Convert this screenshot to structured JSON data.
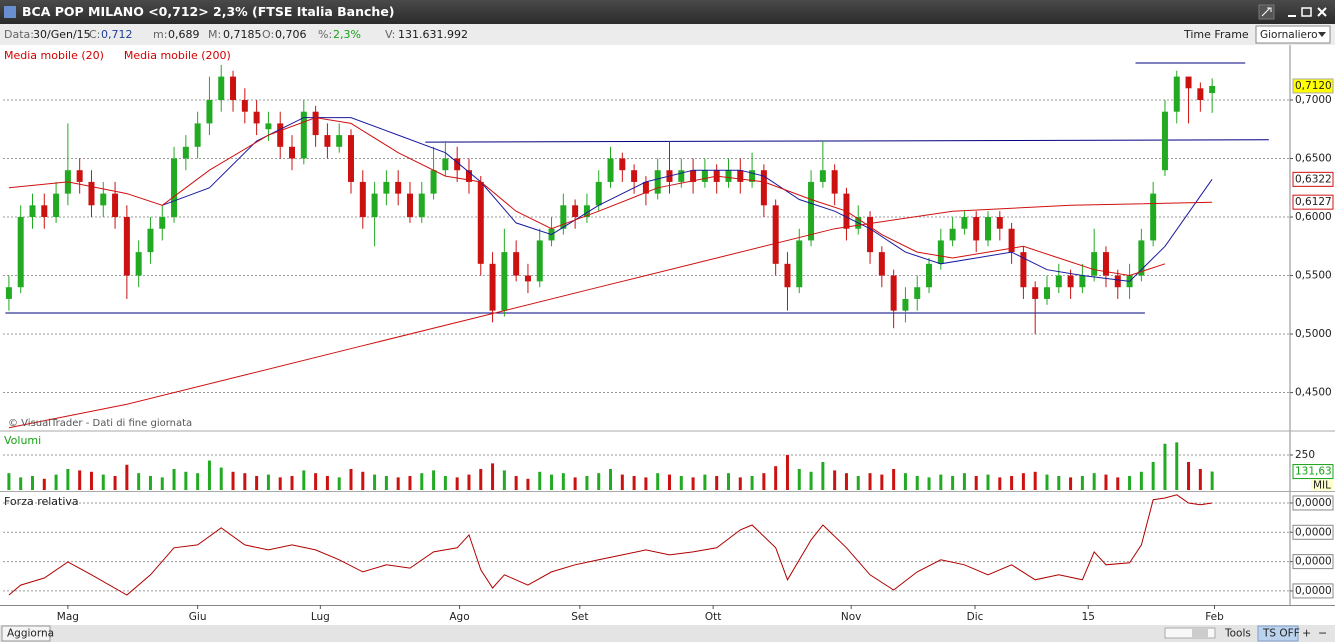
{
  "window": {
    "title": "BCA POP MILANO <0,712> 2,3%  (FTSE Italia Banche)",
    "info": [
      {
        "label": "Data:",
        "value": "30/Gen/15"
      },
      {
        "label": "C:",
        "value": "0,712"
      },
      {
        "label": "m:",
        "value": "0,689"
      },
      {
        "label": "M:",
        "value": "0,7185"
      },
      {
        "label": "O:",
        "value": "0,706"
      },
      {
        "label": "%:",
        "value": "2,3%"
      },
      {
        "label": "V:",
        "value": "131.631.992"
      }
    ],
    "time_frame_label": "Time Frame",
    "time_frame": "Giornaliero",
    "bottom": {
      "refresh": "Aggiorna",
      "tools": "Tools",
      "ts": "TS OFF"
    }
  },
  "chart_data": [
    {
      "type": "candlestick",
      "source": "© VisualTrader - Dati di fine giornata",
      "up_color": "#22aa22",
      "down_color": "#cc1111",
      "xlim": [
        -0.5,
        108.6
      ],
      "ylim": [
        0.418,
        0.747
      ],
      "yticks": [
        {
          "value": 0.45,
          "label": "0,4500"
        },
        {
          "value": 0.5,
          "label": "0,5000"
        },
        {
          "value": 0.55,
          "label": "0,5500"
        },
        {
          "value": 0.6,
          "label": "0,6000"
        },
        {
          "value": 0.65,
          "label": "0,6500"
        },
        {
          "value": 0.7,
          "label": "0,7000"
        }
      ],
      "grid": true,
      "ohlc": [
        [
          0.53,
          0.55,
          0.52,
          0.54
        ],
        [
          0.54,
          0.61,
          0.535,
          0.6
        ],
        [
          0.6,
          0.62,
          0.59,
          0.61
        ],
        [
          0.61,
          0.62,
          0.59,
          0.6
        ],
        [
          0.6,
          0.63,
          0.595,
          0.62
        ],
        [
          0.62,
          0.68,
          0.61,
          0.64
        ],
        [
          0.64,
          0.65,
          0.62,
          0.63
        ],
        [
          0.63,
          0.64,
          0.6,
          0.61
        ],
        [
          0.61,
          0.63,
          0.6,
          0.62
        ],
        [
          0.62,
          0.63,
          0.59,
          0.6
        ],
        [
          0.6,
          0.61,
          0.53,
          0.55
        ],
        [
          0.55,
          0.58,
          0.54,
          0.57
        ],
        [
          0.57,
          0.6,
          0.56,
          0.59
        ],
        [
          0.59,
          0.61,
          0.58,
          0.6
        ],
        [
          0.6,
          0.66,
          0.595,
          0.65
        ],
        [
          0.65,
          0.67,
          0.64,
          0.66
        ],
        [
          0.66,
          0.69,
          0.65,
          0.68
        ],
        [
          0.68,
          0.72,
          0.67,
          0.7
        ],
        [
          0.7,
          0.73,
          0.69,
          0.72
        ],
        [
          0.72,
          0.725,
          0.69,
          0.7
        ],
        [
          0.7,
          0.71,
          0.68,
          0.69
        ],
        [
          0.69,
          0.7,
          0.67,
          0.68
        ],
        [
          0.675,
          0.69,
          0.665,
          0.68
        ],
        [
          0.68,
          0.69,
          0.65,
          0.66
        ],
        [
          0.66,
          0.67,
          0.64,
          0.65
        ],
        [
          0.65,
          0.7,
          0.645,
          0.69
        ],
        [
          0.69,
          0.695,
          0.66,
          0.67
        ],
        [
          0.67,
          0.68,
          0.65,
          0.66
        ],
        [
          0.66,
          0.68,
          0.655,
          0.67
        ],
        [
          0.67,
          0.675,
          0.62,
          0.63
        ],
        [
          0.63,
          0.64,
          0.59,
          0.6
        ],
        [
          0.6,
          0.63,
          0.575,
          0.62
        ],
        [
          0.62,
          0.64,
          0.61,
          0.63
        ],
        [
          0.63,
          0.64,
          0.61,
          0.62
        ],
        [
          0.62,
          0.63,
          0.595,
          0.6
        ],
        [
          0.6,
          0.63,
          0.595,
          0.62
        ],
        [
          0.62,
          0.66,
          0.615,
          0.64
        ],
        [
          0.64,
          0.665,
          0.635,
          0.65
        ],
        [
          0.65,
          0.66,
          0.63,
          0.64
        ],
        [
          0.64,
          0.65,
          0.62,
          0.63
        ],
        [
          0.63,
          0.635,
          0.55,
          0.56
        ],
        [
          0.56,
          0.57,
          0.51,
          0.52
        ],
        [
          0.52,
          0.59,
          0.515,
          0.57
        ],
        [
          0.57,
          0.58,
          0.545,
          0.55
        ],
        [
          0.55,
          0.56,
          0.535,
          0.545
        ],
        [
          0.545,
          0.59,
          0.54,
          0.58
        ],
        [
          0.58,
          0.6,
          0.575,
          0.59
        ],
        [
          0.59,
          0.62,
          0.585,
          0.61
        ],
        [
          0.61,
          0.615,
          0.59,
          0.6
        ],
        [
          0.6,
          0.62,
          0.595,
          0.61
        ],
        [
          0.61,
          0.64,
          0.605,
          0.63
        ],
        [
          0.63,
          0.66,
          0.625,
          0.65
        ],
        [
          0.65,
          0.655,
          0.63,
          0.64
        ],
        [
          0.64,
          0.645,
          0.62,
          0.63
        ],
        [
          0.63,
          0.635,
          0.61,
          0.62
        ],
        [
          0.62,
          0.65,
          0.615,
          0.64
        ],
        [
          0.64,
          0.665,
          0.62,
          0.63
        ],
        [
          0.63,
          0.65,
          0.625,
          0.64
        ],
        [
          0.64,
          0.65,
          0.62,
          0.63
        ],
        [
          0.63,
          0.65,
          0.625,
          0.64
        ],
        [
          0.64,
          0.645,
          0.62,
          0.63
        ],
        [
          0.63,
          0.65,
          0.625,
          0.64
        ],
        [
          0.64,
          0.65,
          0.62,
          0.63
        ],
        [
          0.63,
          0.655,
          0.625,
          0.64
        ],
        [
          0.64,
          0.645,
          0.6,
          0.61
        ],
        [
          0.61,
          0.615,
          0.55,
          0.56
        ],
        [
          0.56,
          0.57,
          0.52,
          0.54
        ],
        [
          0.54,
          0.59,
          0.535,
          0.58
        ],
        [
          0.58,
          0.64,
          0.575,
          0.63
        ],
        [
          0.63,
          0.665,
          0.625,
          0.64
        ],
        [
          0.64,
          0.645,
          0.61,
          0.62
        ],
        [
          0.62,
          0.625,
          0.58,
          0.59
        ],
        [
          0.59,
          0.61,
          0.585,
          0.6
        ],
        [
          0.6,
          0.605,
          0.56,
          0.57
        ],
        [
          0.57,
          0.575,
          0.54,
          0.55
        ],
        [
          0.55,
          0.555,
          0.505,
          0.52
        ],
        [
          0.52,
          0.54,
          0.51,
          0.53
        ],
        [
          0.53,
          0.55,
          0.52,
          0.54
        ],
        [
          0.54,
          0.565,
          0.535,
          0.56
        ],
        [
          0.56,
          0.59,
          0.555,
          0.58
        ],
        [
          0.58,
          0.6,
          0.575,
          0.59
        ],
        [
          0.59,
          0.605,
          0.585,
          0.6
        ],
        [
          0.6,
          0.605,
          0.57,
          0.58
        ],
        [
          0.58,
          0.605,
          0.575,
          0.6
        ],
        [
          0.6,
          0.605,
          0.58,
          0.59
        ],
        [
          0.59,
          0.595,
          0.56,
          0.57
        ],
        [
          0.57,
          0.575,
          0.53,
          0.54
        ],
        [
          0.54,
          0.545,
          0.5,
          0.53
        ],
        [
          0.53,
          0.55,
          0.525,
          0.54
        ],
        [
          0.54,
          0.56,
          0.535,
          0.55
        ],
        [
          0.55,
          0.555,
          0.53,
          0.54
        ],
        [
          0.54,
          0.56,
          0.535,
          0.55
        ],
        [
          0.55,
          0.59,
          0.545,
          0.57
        ],
        [
          0.57,
          0.575,
          0.54,
          0.55
        ],
        [
          0.55,
          0.555,
          0.53,
          0.54
        ],
        [
          0.54,
          0.56,
          0.53,
          0.55
        ],
        [
          0.55,
          0.59,
          0.545,
          0.58
        ],
        [
          0.58,
          0.63,
          0.575,
          0.62
        ],
        [
          0.64,
          0.7,
          0.635,
          0.69
        ],
        [
          0.69,
          0.725,
          0.68,
          0.72
        ],
        [
          0.72,
          0.72,
          0.68,
          0.71
        ],
        [
          0.71,
          0.715,
          0.69,
          0.7
        ],
        [
          0.706,
          0.7185,
          0.689,
          0.712
        ]
      ],
      "lines": [
        {
          "name": "Media mobile (20)",
          "color": "#1a1aa0",
          "x": [
            13,
            17,
            21,
            25,
            29,
            33,
            37,
            40,
            43,
            46,
            50,
            54,
            58,
            62,
            64,
            67,
            70,
            73,
            76,
            79,
            82,
            85,
            88,
            91,
            95,
            98,
            102
          ],
          "values": [
            0.61,
            0.625,
            0.665,
            0.685,
            0.685,
            0.67,
            0.655,
            0.63,
            0.595,
            0.585,
            0.61,
            0.63,
            0.64,
            0.64,
            0.635,
            0.615,
            0.605,
            0.59,
            0.57,
            0.56,
            0.565,
            0.57,
            0.555,
            0.55,
            0.545,
            0.575,
            0.6322
          ]
        },
        {
          "name": "Media mobile (200)",
          "color": "#d01010",
          "x": [
            0,
            10,
            20,
            30,
            40,
            50,
            60,
            70,
            80,
            90,
            102
          ],
          "values": [
            0.42,
            0.44,
            0.465,
            0.49,
            0.515,
            0.54,
            0.565,
            0.59,
            0.605,
            0.61,
            0.6127
          ]
        },
        {
          "color": "#d01010",
          "x": [
            0,
            5,
            10,
            13,
            17,
            22,
            26,
            29,
            33,
            37,
            40,
            43,
            46,
            50,
            55,
            60,
            64,
            68,
            71,
            74,
            77,
            80,
            83,
            86,
            89,
            92,
            95,
            98
          ],
          "values": [
            0.625,
            0.63,
            0.62,
            0.61,
            0.64,
            0.67,
            0.685,
            0.68,
            0.655,
            0.635,
            0.63,
            0.605,
            0.59,
            0.605,
            0.625,
            0.635,
            0.63,
            0.615,
            0.605,
            0.585,
            0.57,
            0.565,
            0.57,
            0.575,
            0.565,
            0.555,
            0.55,
            0.56
          ]
        }
      ],
      "trendlines": [
        {
          "color": "#000080",
          "x": [
            -0.3,
            96.3
          ],
          "values": [
            0.518,
            0.518
          ]
        },
        {
          "color": "#000080",
          "x": [
            35.3,
            106.8
          ],
          "values": [
            0.664,
            0.666
          ]
        },
        {
          "color": "#000080",
          "x": [
            95.5,
            104.8
          ],
          "values": [
            0.7316,
            0.7316
          ]
        }
      ],
      "markers": [
        {
          "value": 0.712,
          "label": "0,7120",
          "color": "#ffff00"
        },
        {
          "value": 0.6322,
          "label": "0,6322",
          "color": "#ffffff"
        },
        {
          "value": 0.6127,
          "label": "0,6127",
          "color": "#ffffff"
        }
      ]
    },
    {
      "type": "bar",
      "title": "Volumi",
      "xlim": [
        -0.5,
        108.6
      ],
      "ylim": [
        0,
        414
      ],
      "yticks": [
        250
      ],
      "grid": true,
      "unit": "MIL",
      "values": [
        120,
        90,
        100,
        80,
        110,
        150,
        140,
        130,
        110,
        100,
        180,
        120,
        100,
        90,
        150,
        130,
        120,
        210,
        160,
        130,
        120,
        100,
        110,
        90,
        100,
        140,
        120,
        100,
        90,
        150,
        130,
        110,
        100,
        90,
        100,
        120,
        140,
        100,
        90,
        110,
        150,
        190,
        140,
        100,
        80,
        130,
        110,
        120,
        90,
        100,
        120,
        150,
        110,
        100,
        90,
        120,
        110,
        100,
        90,
        110,
        100,
        120,
        90,
        100,
        120,
        170,
        250,
        150,
        130,
        200,
        140,
        120,
        100,
        120,
        110,
        150,
        120,
        100,
        90,
        110,
        100,
        120,
        100,
        110,
        90,
        100,
        120,
        130,
        110,
        100,
        90,
        100,
        120,
        110,
        90,
        100,
        130,
        200,
        330,
        340,
        200,
        150,
        131.63
      ],
      "marker": {
        "value": 131.63,
        "label": "131,63"
      }
    },
    {
      "type": "line",
      "title": "Forza relativa",
      "color": "#b00000",
      "xlim": [
        -0.5,
        108.6
      ],
      "ylim": [
        -4.8e-06,
        3.34e-05
      ],
      "grid": true,
      "yticks": [
        {
          "value": 0,
          "label": "0,0000"
        },
        {
          "value": 1e-05,
          "label": "0,0000"
        },
        {
          "value": 2e-05,
          "label": "0,0000"
        },
        {
          "value": 3e-05,
          "label": "0,0000"
        }
      ],
      "xticks": [
        {
          "value": 5,
          "label": "Mag"
        },
        {
          "value": 16,
          "label": "Giu"
        },
        {
          "value": 26.4,
          "label": "Lug"
        },
        {
          "value": 38.2,
          "label": "Ago"
        },
        {
          "value": 48.4,
          "label": "Set"
        },
        {
          "value": 59.7,
          "label": "Ott"
        },
        {
          "value": 71.4,
          "label": "Nov"
        },
        {
          "value": 81.9,
          "label": "Dic"
        },
        {
          "value": 91.5,
          "label": "15",
          "color": "#c00000"
        },
        {
          "value": 102.2,
          "label": "Feb"
        }
      ],
      "x": [
        0,
        1,
        3,
        5,
        7,
        10,
        12,
        14,
        16,
        18,
        20,
        22,
        24,
        26,
        28,
        30,
        32,
        34,
        36,
        38,
        39,
        40,
        41,
        42,
        44,
        46,
        48,
        50,
        52,
        54,
        56,
        58,
        60,
        62,
        63,
        65,
        66,
        68,
        69,
        71,
        73,
        75,
        77,
        79,
        81,
        83,
        85,
        87,
        89,
        91,
        92,
        93,
        95,
        96,
        97,
        98,
        99,
        100,
        101,
        102
      ],
      "values": [
        -1.4e-06,
        2e-06,
        4.4e-06,
        9.9e-06,
        5.5e-06,
        -1.4e-06,
        5.5e-06,
        1.47e-05,
        1.57e-05,
        2.15e-05,
        1.57e-05,
        1.4e-05,
        1.57e-05,
        1.4e-05,
        1.06e-05,
        6.5e-06,
        8.9e-06,
        7.8e-06,
        1.33e-05,
        1.47e-05,
        1.91e-05,
        7.2e-06,
        1e-06,
        5.5e-06,
        2e-06,
        6.5e-06,
        8.9e-06,
        1.06e-05,
        1.23e-05,
        1.4e-05,
        1.23e-05,
        1.33e-05,
        1.47e-05,
        2.08e-05,
        2.25e-05,
        1.47e-05,
        3.8e-06,
        1.74e-05,
        2.25e-05,
        1.47e-05,
        5.5e-06,
        3e-07,
        6.5e-06,
        1.06e-05,
        8.9e-06,
        5.5e-06,
        8.9e-06,
        3.8e-06,
        5.5e-06,
        3.8e-06,
        1.33e-05,
        8.9e-06,
        9.6e-06,
        1.57e-05,
        3.11e-05,
        3.17e-05,
        3.28e-05,
        3e-05,
        2.94e-05,
        3e-05
      ]
    }
  ]
}
